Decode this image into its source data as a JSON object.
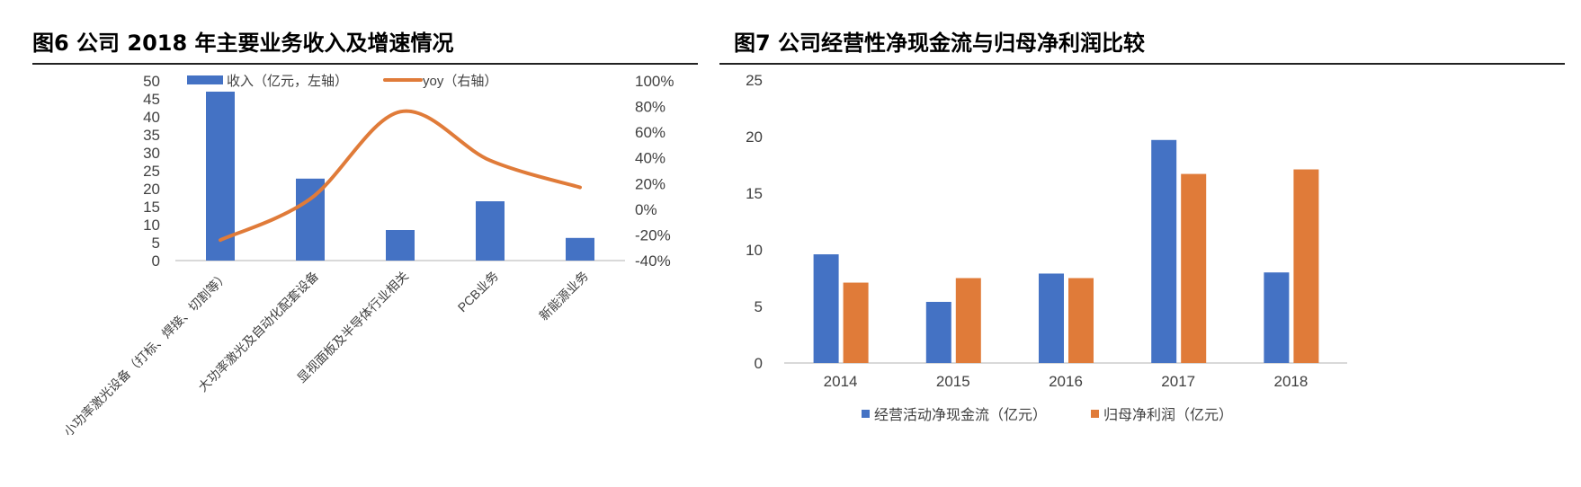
{
  "figures": [
    {
      "title": "图6  公司 2018 年主要业务收入及增速情况"
    },
    {
      "title": "图7  公司经营性净现金流与归母净利润比较"
    }
  ],
  "chart_data": [
    {
      "type": "bar+line",
      "categories": [
        "小功率激光设备（打标、焊接、切割等）",
        "大功率激光及自动化配套设备",
        "显视面板及半导体行业相关",
        "PCB业务",
        "新能源业务"
      ],
      "series": [
        {
          "name": "收入（亿元，左轴）",
          "type": "bar",
          "axis": "left",
          "color": "#4472C4",
          "values": [
            47,
            22.8,
            8.5,
            16.5,
            6.3
          ]
        },
        {
          "name": "yoy（右轴）",
          "type": "line",
          "axis": "right",
          "color": "#E07B39",
          "values": [
            -24,
            8,
            76,
            38,
            17
          ]
        }
      ],
      "ylim_left": [
        0,
        50
      ],
      "yticks_left": [
        "0",
        "5",
        "10",
        "15",
        "20",
        "25",
        "30",
        "35",
        "40",
        "45",
        "50"
      ],
      "ylim_right": [
        -40,
        100
      ],
      "yticks_right": [
        "-40%",
        "-20%",
        "0%",
        "20%",
        "40%",
        "60%",
        "80%",
        "100%"
      ],
      "legend": "top",
      "grid": false
    },
    {
      "type": "bar",
      "categories": [
        "2014",
        "2015",
        "2016",
        "2017",
        "2018"
      ],
      "series": [
        {
          "name": "经营活动净现金流（亿元）",
          "color": "#4472C4",
          "values": [
            9.6,
            5.4,
            7.9,
            19.7,
            8.0
          ]
        },
        {
          "name": "归母净利润（亿元）",
          "color": "#E07B39",
          "values": [
            7.1,
            7.5,
            7.5,
            16.7,
            17.1
          ]
        }
      ],
      "ylim": [
        0,
        25
      ],
      "yticks": [
        "0",
        "5",
        "10",
        "15",
        "20",
        "25"
      ],
      "legend": "bottom",
      "grid": false
    }
  ]
}
